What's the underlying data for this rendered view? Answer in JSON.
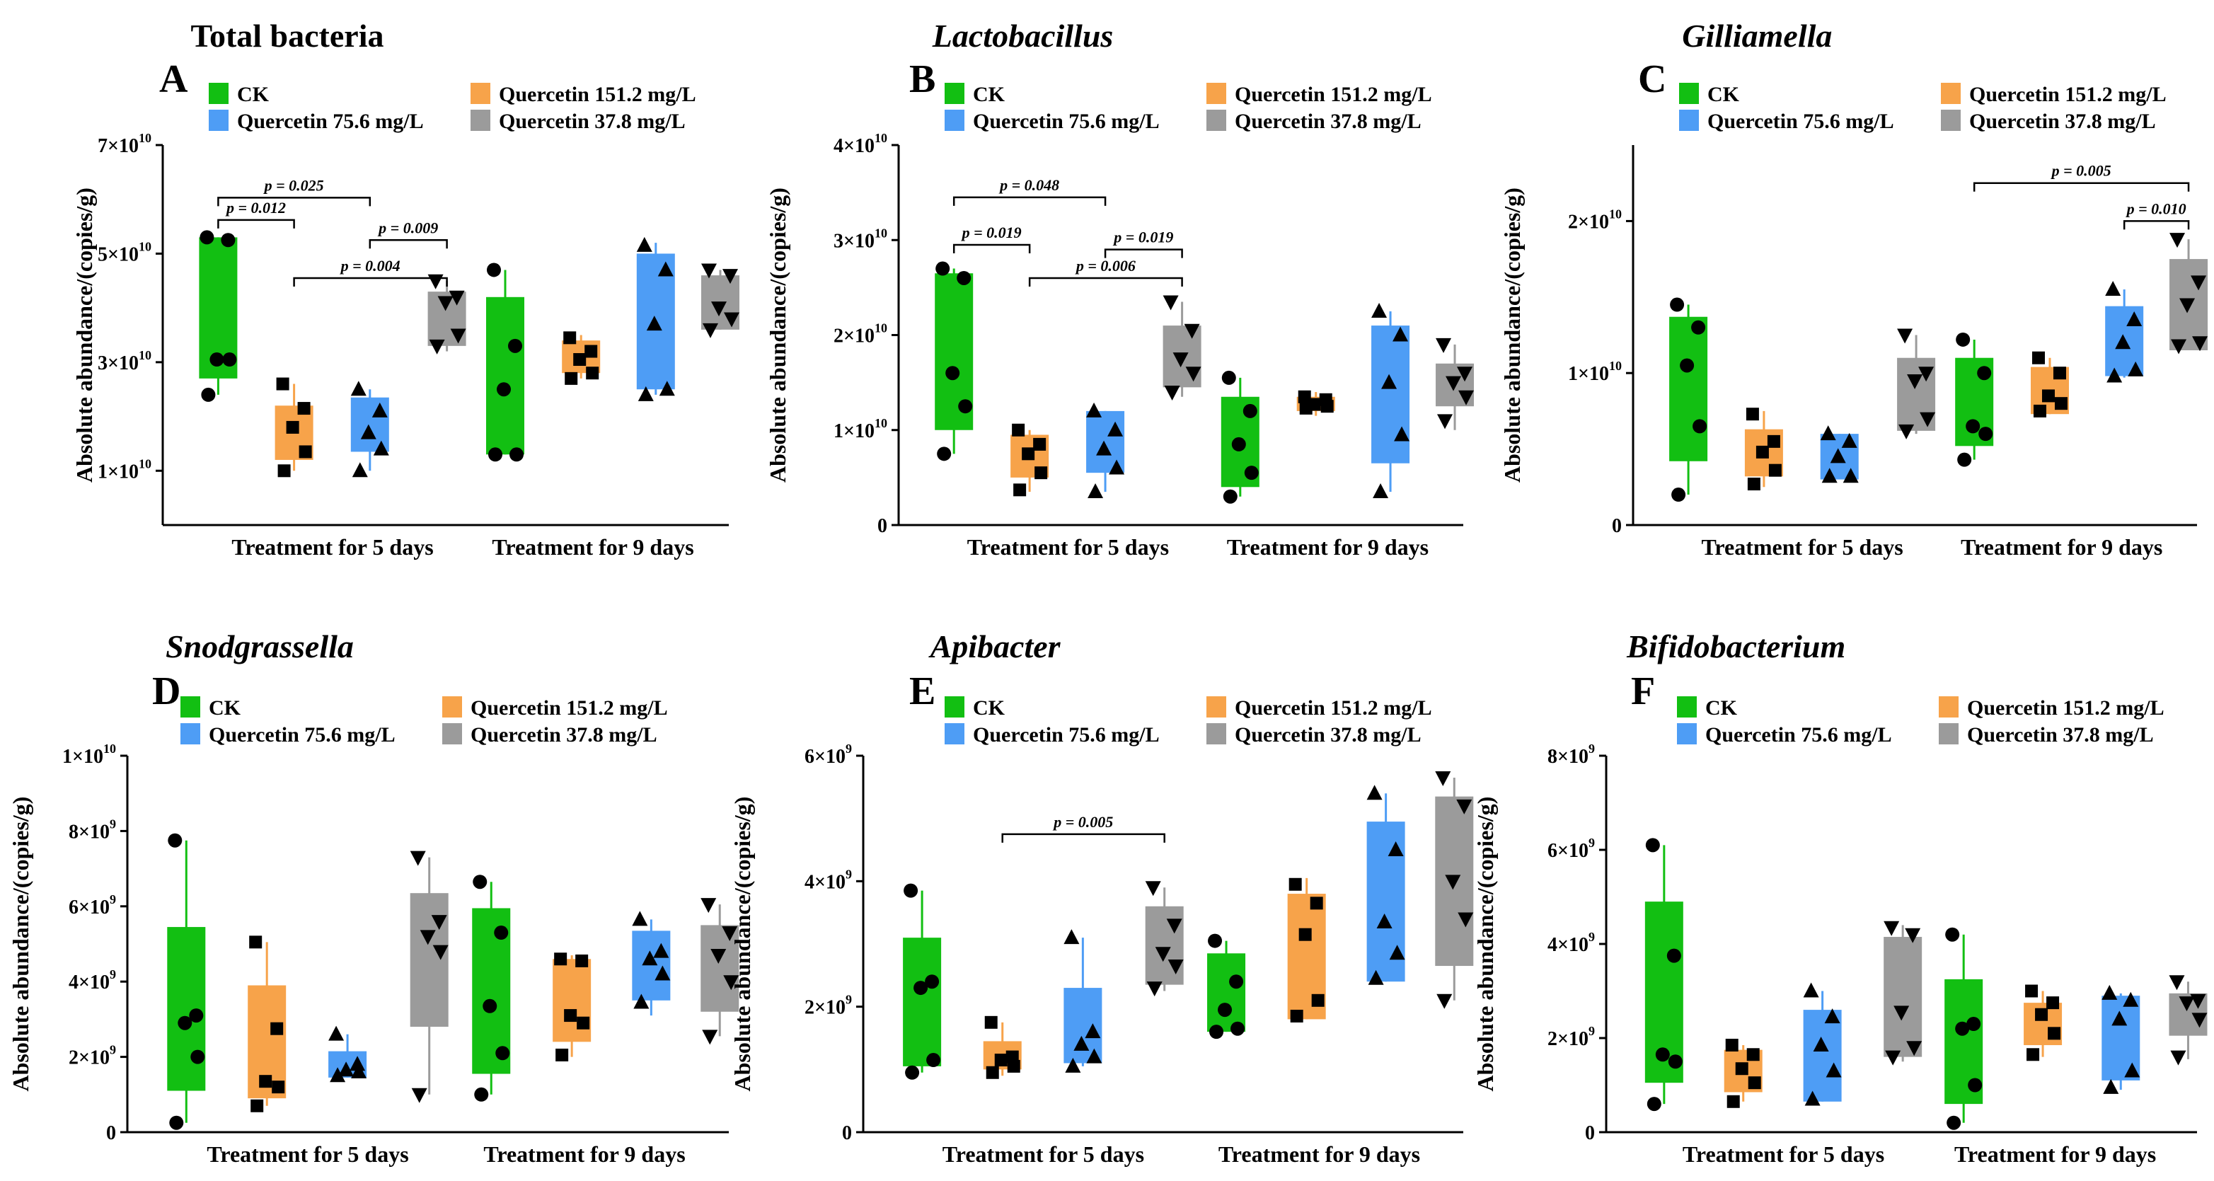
{
  "chart_data": [
    {
      "panel": "A",
      "title": "Total bacteria",
      "italic": false,
      "type": "box",
      "ylabel": "Absolute abundance/(copies/g)",
      "groups": [
        "Treatment for 5 days",
        "Treatment for 9 days"
      ],
      "series": [
        "CK",
        "Quercetin 151.2 mg/L",
        "Quercetin 75.6 mg/L",
        "Quercetin 37.8 mg/L"
      ],
      "unit_exp": 10,
      "ylim": [
        0,
        7
      ],
      "yticks": [
        {
          "v": 7,
          "m": "7",
          "e": "10"
        },
        {
          "v": 5,
          "m": "5",
          "e": "10"
        },
        {
          "v": 3,
          "m": "3",
          "e": "10"
        },
        {
          "v": 1,
          "m": "1",
          "e": "10"
        }
      ],
      "boxes": [
        {
          "q1": 2.7,
          "q3": 5.3,
          "wlo": 2.4,
          "whi": 5.3,
          "pts": [
            5.3,
            5.25,
            3.05,
            3.05,
            2.4
          ]
        },
        {
          "q1": 1.2,
          "q3": 2.2,
          "wlo": 1.0,
          "whi": 2.6,
          "pts": [
            2.6,
            2.15,
            1.8,
            1.35,
            1.0
          ]
        },
        {
          "q1": 1.35,
          "q3": 2.35,
          "wlo": 1.0,
          "whi": 2.5,
          "pts": [
            2.5,
            2.1,
            1.7,
            1.4,
            1.0
          ]
        },
        {
          "q1": 3.3,
          "q3": 4.3,
          "wlo": 3.2,
          "whi": 4.5,
          "pts": [
            4.5,
            4.2,
            4.1,
            3.5,
            3.3
          ]
        },
        {
          "q1": 1.3,
          "q3": 4.2,
          "wlo": 1.3,
          "whi": 4.7,
          "pts": [
            4.7,
            3.3,
            2.5,
            1.3,
            1.3
          ]
        },
        {
          "q1": 2.8,
          "q3": 3.4,
          "wlo": 2.7,
          "whi": 3.5,
          "pts": [
            3.45,
            3.2,
            3.05,
            2.8,
            2.7
          ]
        },
        {
          "q1": 2.5,
          "q3": 5.0,
          "wlo": 2.4,
          "whi": 5.2,
          "pts": [
            5.15,
            4.7,
            3.7,
            2.5,
            2.4
          ]
        },
        {
          "q1": 3.6,
          "q3": 4.6,
          "wlo": 3.6,
          "whi": 4.7,
          "pts": [
            4.7,
            4.6,
            4.0,
            3.8,
            3.6
          ]
        }
      ],
      "sig": [
        {
          "i": 0,
          "j": 1,
          "y": 5.62,
          "label": "p = 0.012"
        },
        {
          "i": 0,
          "j": 2,
          "y": 6.03,
          "label": "p = 0.025"
        },
        {
          "i": 2,
          "j": 3,
          "y": 5.25,
          "label": "p = 0.009"
        },
        {
          "i": 1,
          "j": 3,
          "y": 4.55,
          "label": "p = 0.004"
        }
      ]
    },
    {
      "panel": "B",
      "title": "Lactobacillus",
      "italic": true,
      "type": "box",
      "ylabel": "Absolute abundance/(copies/g)",
      "groups": [
        "Treatment for 5 days",
        "Treatment for 9 days"
      ],
      "series": [
        "CK",
        "Quercetin 151.2 mg/L",
        "Quercetin 75.6 mg/L",
        "Quercetin 37.8 mg/L"
      ],
      "unit_exp": 10,
      "ylim": [
        0,
        4
      ],
      "yticks": [
        {
          "v": 4,
          "m": "4",
          "e": "10"
        },
        {
          "v": 3,
          "m": "3",
          "e": "10"
        },
        {
          "v": 2,
          "m": "2",
          "e": "10"
        },
        {
          "v": 1,
          "m": "1",
          "e": "10"
        },
        {
          "v": 0,
          "m": "0",
          "e": ""
        }
      ],
      "boxes": [
        {
          "q1": 1.0,
          "q3": 2.65,
          "wlo": 0.75,
          "whi": 2.7,
          "pts": [
            2.7,
            2.6,
            1.6,
            1.25,
            0.75
          ]
        },
        {
          "q1": 0.5,
          "q3": 0.95,
          "wlo": 0.35,
          "whi": 1.0,
          "pts": [
            1.0,
            0.85,
            0.75,
            0.55,
            0.37
          ]
        },
        {
          "q1": 0.55,
          "q3": 1.2,
          "wlo": 0.35,
          "whi": 1.2,
          "pts": [
            1.2,
            1.0,
            0.8,
            0.6,
            0.35
          ]
        },
        {
          "q1": 1.45,
          "q3": 2.1,
          "wlo": 1.35,
          "whi": 2.35,
          "pts": [
            2.35,
            2.05,
            1.75,
            1.6,
            1.4
          ]
        },
        {
          "q1": 0.4,
          "q3": 1.35,
          "wlo": 0.3,
          "whi": 1.55,
          "pts": [
            1.55,
            1.2,
            0.85,
            0.55,
            0.3
          ]
        },
        {
          "q1": 1.2,
          "q3": 1.35,
          "wlo": 1.15,
          "whi": 1.4,
          "pts": [
            1.35,
            1.32,
            1.27,
            1.25,
            1.23
          ]
        },
        {
          "q1": 0.65,
          "q3": 2.1,
          "wlo": 0.35,
          "whi": 2.25,
          "pts": [
            2.25,
            2.0,
            1.5,
            0.95,
            0.35
          ]
        },
        {
          "q1": 1.25,
          "q3": 1.7,
          "wlo": 1.0,
          "whi": 1.9,
          "pts": [
            1.9,
            1.6,
            1.5,
            1.35,
            1.1
          ]
        }
      ],
      "sig": [
        {
          "i": 0,
          "j": 1,
          "y": 2.95,
          "label": "p = 0.019"
        },
        {
          "i": 0,
          "j": 2,
          "y": 3.45,
          "label": "p = 0.048"
        },
        {
          "i": 2,
          "j": 3,
          "y": 2.9,
          "label": "p = 0.019"
        },
        {
          "i": 1,
          "j": 3,
          "y": 2.6,
          "label": "p = 0.006"
        }
      ]
    },
    {
      "panel": "C",
      "title": "Gilliamella",
      "italic": true,
      "type": "box",
      "ylabel": "Absolute abundance/(copies/g)",
      "groups": [
        "Treatment for 5 days",
        "Treatment for 9 days"
      ],
      "series": [
        "CK",
        "Quercetin 151.2 mg/L",
        "Quercetin 75.6 mg/L",
        "Quercetin 37.8 mg/L"
      ],
      "unit_exp": 10,
      "ylim": [
        0,
        2.5
      ],
      "yticks": [
        {
          "v": 2,
          "m": "2",
          "e": "10"
        },
        {
          "v": 1,
          "m": "1",
          "e": "10"
        },
        {
          "v": 0,
          "m": "0",
          "e": ""
        }
      ],
      "boxes": [
        {
          "q1": 0.42,
          "q3": 1.37,
          "wlo": 0.2,
          "whi": 1.45,
          "pts": [
            1.45,
            1.3,
            1.05,
            0.65,
            0.2
          ]
        },
        {
          "q1": 0.32,
          "q3": 0.63,
          "wlo": 0.25,
          "whi": 0.75,
          "pts": [
            0.73,
            0.55,
            0.48,
            0.36,
            0.27
          ]
        },
        {
          "q1": 0.3,
          "q3": 0.6,
          "wlo": 0.3,
          "whi": 0.6,
          "pts": [
            0.6,
            0.55,
            0.45,
            0.32,
            0.32
          ]
        },
        {
          "q1": 0.62,
          "q3": 1.1,
          "wlo": 0.6,
          "whi": 1.25,
          "pts": [
            1.25,
            1.0,
            0.95,
            0.7,
            0.62
          ]
        },
        {
          "q1": 0.52,
          "q3": 1.1,
          "wlo": 0.43,
          "whi": 1.22,
          "pts": [
            1.22,
            1.0,
            0.65,
            0.6,
            0.43
          ]
        },
        {
          "q1": 0.73,
          "q3": 1.04,
          "wlo": 0.73,
          "whi": 1.1,
          "pts": [
            1.1,
            1.0,
            0.85,
            0.8,
            0.75
          ]
        },
        {
          "q1": 0.98,
          "q3": 1.44,
          "wlo": 0.97,
          "whi": 1.55,
          "pts": [
            1.55,
            1.35,
            1.2,
            1.02,
            0.98
          ]
        },
        {
          "q1": 1.15,
          "q3": 1.75,
          "wlo": 1.15,
          "whi": 1.88,
          "pts": [
            1.88,
            1.6,
            1.45,
            1.2,
            1.18
          ]
        }
      ],
      "sig": [
        {
          "i": 4,
          "j": 7,
          "y": 2.25,
          "label": "p = 0.005"
        },
        {
          "i": 6,
          "j": 7,
          "y": 2.0,
          "label": "p = 0.010"
        }
      ]
    },
    {
      "panel": "D",
      "title": "Snodgrassella",
      "italic": true,
      "type": "box",
      "ylabel": "Absolute abundance/(copies/g)",
      "groups": [
        "Treatment for 5 days",
        "Treatment for 9 days"
      ],
      "series": [
        "CK",
        "Quercetin 151.2 mg/L",
        "Quercetin 75.6 mg/L",
        "Quercetin 37.8 mg/L"
      ],
      "unit_exp": 9,
      "ylim": [
        0,
        10
      ],
      "yticks": [
        {
          "v": 10,
          "m": "1",
          "e": "10"
        },
        {
          "v": 8,
          "m": "8",
          "e": "9"
        },
        {
          "v": 6,
          "m": "6",
          "e": "9"
        },
        {
          "v": 4,
          "m": "4",
          "e": "9"
        },
        {
          "v": 2,
          "m": "2",
          "e": "9"
        },
        {
          "v": 0,
          "m": "0",
          "e": ""
        }
      ],
      "boxes": [
        {
          "q1": 1.1,
          "q3": 5.45,
          "wlo": 0.25,
          "whi": 7.75,
          "pts": [
            7.75,
            3.1,
            2.9,
            2.0,
            0.25
          ]
        },
        {
          "q1": 0.9,
          "q3": 3.9,
          "wlo": 0.7,
          "whi": 5.05,
          "pts": [
            5.05,
            2.75,
            1.35,
            1.2,
            0.7
          ]
        },
        {
          "q1": 1.45,
          "q3": 2.15,
          "wlo": 1.45,
          "whi": 2.6,
          "pts": [
            2.6,
            1.8,
            1.65,
            1.6,
            1.5
          ]
        },
        {
          "q1": 2.8,
          "q3": 6.35,
          "wlo": 1.0,
          "whi": 7.3,
          "pts": [
            7.3,
            5.6,
            5.2,
            4.8,
            1.0
          ]
        },
        {
          "q1": 1.55,
          "q3": 5.95,
          "wlo": 1.0,
          "whi": 6.65,
          "pts": [
            6.65,
            5.3,
            3.35,
            2.1,
            1.0
          ]
        },
        {
          "q1": 2.4,
          "q3": 4.6,
          "wlo": 2.0,
          "whi": 4.7,
          "pts": [
            4.6,
            4.55,
            3.1,
            2.9,
            2.05
          ]
        },
        {
          "q1": 3.5,
          "q3": 5.35,
          "wlo": 3.1,
          "whi": 5.65,
          "pts": [
            5.65,
            4.8,
            4.6,
            4.2,
            3.45
          ]
        },
        {
          "q1": 3.2,
          "q3": 5.5,
          "wlo": 2.55,
          "whi": 6.05,
          "pts": [
            6.05,
            5.3,
            4.7,
            4.0,
            2.55
          ]
        }
      ],
      "sig": []
    },
    {
      "panel": "E",
      "title": "Apibacter",
      "italic": true,
      "type": "box",
      "ylabel": "Absolute abundance/(copies/g)",
      "groups": [
        "Treatment for 5 days",
        "Treatment for 9 days"
      ],
      "series": [
        "CK",
        "Quercetin 151.2 mg/L",
        "Quercetin 75.6 mg/L",
        "Quercetin 37.8 mg/L"
      ],
      "unit_exp": 9,
      "ylim": [
        0,
        6
      ],
      "yticks": [
        {
          "v": 6,
          "m": "6",
          "e": "9"
        },
        {
          "v": 4,
          "m": "4",
          "e": "9"
        },
        {
          "v": 2,
          "m": "2",
          "e": "9"
        },
        {
          "v": 0,
          "m": "0",
          "e": ""
        }
      ],
      "boxes": [
        {
          "q1": 1.05,
          "q3": 3.1,
          "wlo": 0.95,
          "whi": 3.85,
          "pts": [
            3.85,
            2.4,
            2.3,
            1.15,
            0.95
          ]
        },
        {
          "q1": 1.0,
          "q3": 1.45,
          "wlo": 0.9,
          "whi": 1.75,
          "pts": [
            1.75,
            1.2,
            1.15,
            1.05,
            0.95
          ]
        },
        {
          "q1": 1.1,
          "q3": 2.3,
          "wlo": 1.05,
          "whi": 3.1,
          "pts": [
            3.1,
            1.6,
            1.4,
            1.2,
            1.05
          ]
        },
        {
          "q1": 2.35,
          "q3": 3.6,
          "wlo": 2.25,
          "whi": 3.9,
          "pts": [
            3.9,
            3.3,
            2.85,
            2.65,
            2.3
          ]
        },
        {
          "q1": 1.6,
          "q3": 2.85,
          "wlo": 1.6,
          "whi": 3.05,
          "pts": [
            3.05,
            2.4,
            1.95,
            1.65,
            1.6
          ]
        },
        {
          "q1": 1.8,
          "q3": 3.8,
          "wlo": 1.8,
          "whi": 4.05,
          "pts": [
            3.95,
            3.65,
            3.15,
            2.1,
            1.85
          ]
        },
        {
          "q1": 2.4,
          "q3": 4.95,
          "wlo": 2.4,
          "whi": 5.4,
          "pts": [
            5.4,
            4.5,
            3.35,
            2.85,
            2.45
          ]
        },
        {
          "q1": 2.65,
          "q3": 5.35,
          "wlo": 2.1,
          "whi": 5.65,
          "pts": [
            5.65,
            5.2,
            4.0,
            3.4,
            2.1
          ]
        }
      ],
      "sig": [
        {
          "i": 1,
          "j": 3,
          "y": 4.75,
          "label": "p = 0.005"
        }
      ]
    },
    {
      "panel": "F",
      "title": "Bifidobacterium",
      "italic": true,
      "type": "box",
      "ylabel": "Absolute abundance/(copies/g)",
      "groups": [
        "Treatment for 5 days",
        "Treatment for 9 days"
      ],
      "series": [
        "CK",
        "Quercetin 151.2 mg/L",
        "Quercetin 75.6 mg/L",
        "Quercetin 37.8 mg/L"
      ],
      "unit_exp": 9,
      "ylim": [
        0,
        8
      ],
      "yticks": [
        {
          "v": 8,
          "m": "8",
          "e": "9"
        },
        {
          "v": 6,
          "m": "6",
          "e": "9"
        },
        {
          "v": 4,
          "m": "4",
          "e": "9"
        },
        {
          "v": 2,
          "m": "2",
          "e": "9"
        },
        {
          "v": 0,
          "m": "0",
          "e": ""
        }
      ],
      "boxes": [
        {
          "q1": 1.05,
          "q3": 4.9,
          "wlo": 0.6,
          "whi": 6.1,
          "pts": [
            6.1,
            3.75,
            1.65,
            1.5,
            0.6
          ]
        },
        {
          "q1": 0.85,
          "q3": 1.75,
          "wlo": 0.65,
          "whi": 1.85,
          "pts": [
            1.85,
            1.65,
            1.35,
            1.05,
            0.65
          ]
        },
        {
          "q1": 0.65,
          "q3": 2.6,
          "wlo": 0.65,
          "whi": 3.0,
          "pts": [
            3.0,
            2.45,
            1.85,
            1.3,
            0.7
          ]
        },
        {
          "q1": 1.6,
          "q3": 4.15,
          "wlo": 1.5,
          "whi": 4.4,
          "pts": [
            4.35,
            4.2,
            2.55,
            1.8,
            1.6
          ]
        },
        {
          "q1": 0.6,
          "q3": 3.25,
          "wlo": 0.2,
          "whi": 4.2,
          "pts": [
            4.2,
            2.3,
            2.2,
            1.0,
            0.2
          ]
        },
        {
          "q1": 1.85,
          "q3": 2.75,
          "wlo": 1.6,
          "whi": 3.0,
          "pts": [
            3.0,
            2.75,
            2.5,
            2.1,
            1.65
          ]
        },
        {
          "q1": 1.1,
          "q3": 2.9,
          "wlo": 0.9,
          "whi": 2.95,
          "pts": [
            2.95,
            2.8,
            2.4,
            1.3,
            0.95
          ]
        },
        {
          "q1": 2.05,
          "q3": 2.95,
          "wlo": 1.55,
          "whi": 3.2,
          "pts": [
            3.2,
            2.8,
            2.75,
            2.4,
            1.6
          ]
        }
      ],
      "sig": []
    }
  ],
  "colors": {
    "CK": "#12bf12",
    "Quercetin 151.2 mg/L": "#f7a34a",
    "Quercetin 75.6 mg/L": "#4e9df5",
    "Quercetin 37.8 mg/L": "#9b9b9b",
    "axis": "#000000"
  },
  "markers": [
    "circle",
    "square",
    "triangle-up",
    "triangle-down"
  ]
}
